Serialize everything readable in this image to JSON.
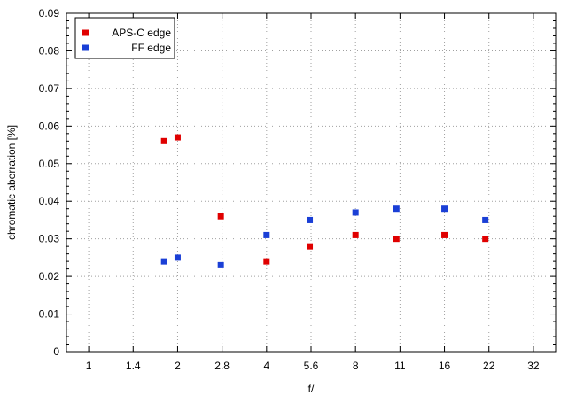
{
  "chart_data": {
    "type": "scatter",
    "title": "",
    "xlabel": "f/",
    "ylabel": "chromatic  aberration [%]",
    "x_tick_labels": [
      "1",
      "1.4",
      "2",
      "2.8",
      "4",
      "5.6",
      "8",
      "11",
      "16",
      "22",
      "32"
    ],
    "y_tick_labels": [
      "0",
      "0.01",
      "0.02",
      "0.03",
      "0.04",
      "0.05",
      "0.06",
      "0.07",
      "0.08",
      "0.09"
    ],
    "ylim": [
      0,
      0.09
    ],
    "grid": true,
    "legend_position": "top-left",
    "series": [
      {
        "name": "APS-C edge",
        "color": "#e00000",
        "points": [
          {
            "x": 1.8,
            "y": 0.056
          },
          {
            "x": 2.0,
            "y": 0.057
          },
          {
            "x": 2.8,
            "y": 0.036
          },
          {
            "x": 4.0,
            "y": 0.024
          },
          {
            "x": 5.6,
            "y": 0.028
          },
          {
            "x": 8.0,
            "y": 0.031
          },
          {
            "x": 11.0,
            "y": 0.03
          },
          {
            "x": 16.0,
            "y": 0.031
          },
          {
            "x": 22.0,
            "y": 0.03
          }
        ]
      },
      {
        "name": "FF edge",
        "color": "#1a3fd6",
        "points": [
          {
            "x": 1.8,
            "y": 0.024
          },
          {
            "x": 2.0,
            "y": 0.025
          },
          {
            "x": 2.8,
            "y": 0.023
          },
          {
            "x": 4.0,
            "y": 0.031
          },
          {
            "x": 5.6,
            "y": 0.035
          },
          {
            "x": 8.0,
            "y": 0.037
          },
          {
            "x": 11.0,
            "y": 0.038
          },
          {
            "x": 16.0,
            "y": 0.038
          },
          {
            "x": 22.0,
            "y": 0.035
          }
        ]
      }
    ]
  }
}
